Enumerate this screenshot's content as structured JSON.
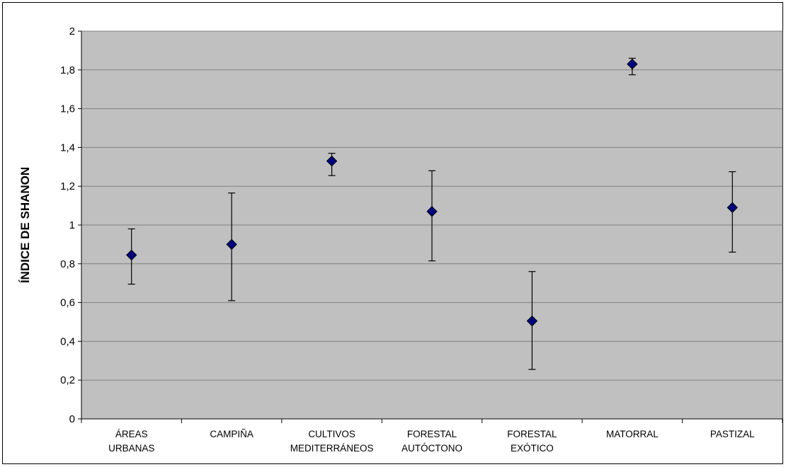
{
  "chart_data": {
    "type": "scatter",
    "title": "",
    "xlabel": "",
    "ylabel": "ÍNDICE DE SHANON",
    "ylim": [
      0,
      2
    ],
    "yticks": [
      {
        "value": 0,
        "label": "0"
      },
      {
        "value": 0.2,
        "label": "0,2"
      },
      {
        "value": 0.4,
        "label": "0,4"
      },
      {
        "value": 0.6,
        "label": "0,6"
      },
      {
        "value": 0.8,
        "label": "0,8"
      },
      {
        "value": 1.0,
        "label": "1"
      },
      {
        "value": 1.2,
        "label": "1,2"
      },
      {
        "value": 1.4,
        "label": "1,4"
      },
      {
        "value": 1.6,
        "label": "1,6"
      },
      {
        "value": 1.8,
        "label": "1,8"
      },
      {
        "value": 2.0,
        "label": "2"
      }
    ],
    "grid": true,
    "legend": "none",
    "categories": [
      {
        "lines": [
          "ÁREAS",
          "URBANAS"
        ]
      },
      {
        "lines": [
          "CAMPIÑA"
        ]
      },
      {
        "lines": [
          "CULTIVOS",
          "MEDITERRÁNEOS"
        ]
      },
      {
        "lines": [
          "FORESTAL",
          "AUTÓCTONO"
        ]
      },
      {
        "lines": [
          "FORESTAL",
          "EXÓTICO"
        ]
      },
      {
        "lines": [
          "MATORRAL"
        ]
      },
      {
        "lines": [
          "PASTIZAL"
        ]
      }
    ],
    "series": [
      {
        "values": [
          0.845,
          0.9,
          1.33,
          1.07,
          0.505,
          1.83,
          1.09
        ],
        "error_low": [
          0.695,
          0.61,
          1.255,
          0.815,
          0.255,
          1.775,
          0.86
        ],
        "error_high": [
          0.98,
          1.165,
          1.37,
          1.28,
          0.76,
          1.86,
          1.275
        ]
      }
    ],
    "colors": {
      "plot_background": "#c0c0c0",
      "gridline": "#808080",
      "marker_fill": "#000080",
      "marker_stroke": "#000000",
      "axis": "#000000"
    }
  }
}
